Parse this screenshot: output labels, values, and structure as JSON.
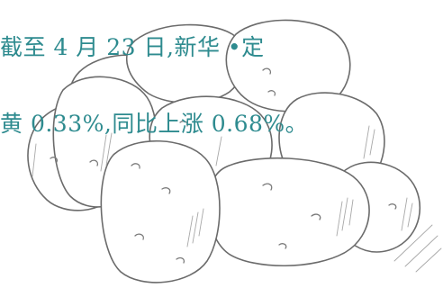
{
  "caption": {
    "line_1": "截至 4 月 23 日,新华 •定",
    "line_2": "⻩ 0.33%,同比上涨 0.68%。"
  },
  "illustration": {
    "subject": "potato-pile",
    "stroke_color": "#6e6e6e",
    "text_color": "#2e8b8f"
  }
}
